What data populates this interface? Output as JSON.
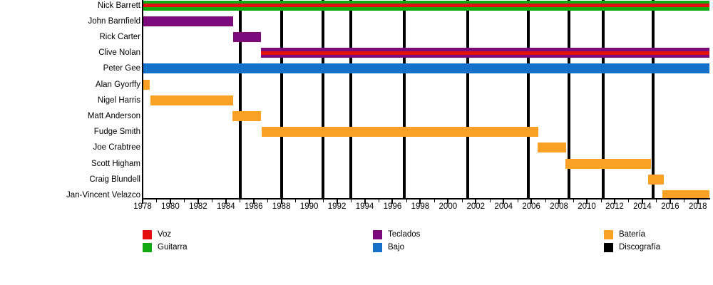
{
  "chart_data": {
    "type": "gantt",
    "description": "Band members timeline with instrument roles (colored bars) and discography release lines (vertical black lines)",
    "x_axis": {
      "min_year": 1978,
      "max_year": 2018.85,
      "tick_every_years": 1,
      "label_every_years": 2,
      "tick_labels": [
        "1978",
        "1980",
        "1982",
        "1984",
        "1986",
        "1988",
        "1990",
        "1992",
        "1994",
        "1996",
        "1998",
        "2000",
        "2002",
        "2004",
        "2006",
        "2008",
        "2010",
        "2012",
        "2014",
        "2016",
        "2018"
      ]
    },
    "colors": {
      "red": "#E40F0F",
      "green": "#13A913",
      "purple": "#7D0A7D",
      "blue": "#1470C8",
      "orange": "#FBA226",
      "black": "#000000"
    },
    "rows": [
      {
        "label": "Nick Barrett",
        "bars": [
          {
            "from": 1978,
            "to": 2018.85,
            "color": "green",
            "stripe": "red"
          }
        ]
      },
      {
        "label": "John Barnfield",
        "bars": [
          {
            "from": 1978,
            "to": 1984.5,
            "color": "purple"
          }
        ]
      },
      {
        "label": "Rick Carter",
        "bars": [
          {
            "from": 1984.5,
            "to": 1986.55,
            "color": "purple"
          }
        ]
      },
      {
        "label": "Clive Nolan",
        "bars": [
          {
            "from": 1986.55,
            "to": 2018.85,
            "color": "purple",
            "stripe": "red"
          }
        ]
      },
      {
        "label": "Peter Gee",
        "bars": [
          {
            "from": 1978,
            "to": 2018.85,
            "color": "blue"
          }
        ]
      },
      {
        "label": "Alan Gyorffy",
        "bars": [
          {
            "from": 1978,
            "to": 1978.5,
            "color": "orange"
          }
        ]
      },
      {
        "label": "Nigel Harris",
        "bars": [
          {
            "from": 1978.55,
            "to": 1984.5,
            "color": "orange"
          }
        ]
      },
      {
        "label": "Matt Anderson",
        "bars": [
          {
            "from": 1984.45,
            "to": 1986.55,
            "color": "orange"
          }
        ]
      },
      {
        "label": "Fudge Smith",
        "bars": [
          {
            "from": 1986.6,
            "to": 2006.5,
            "color": "orange"
          }
        ]
      },
      {
        "label": "Joe Crabtree",
        "bars": [
          {
            "from": 2006.45,
            "to": 2008.5,
            "color": "orange"
          }
        ]
      },
      {
        "label": "Scott Higham",
        "bars": [
          {
            "from": 2008.45,
            "to": 2014.6,
            "color": "orange"
          }
        ]
      },
      {
        "label": "Craig Blundell",
        "bars": [
          {
            "from": 2014.4,
            "to": 2015.55,
            "color": "orange"
          }
        ]
      },
      {
        "label": "Jan-Vincent Velazco",
        "bars": [
          {
            "from": 2015.45,
            "to": 2018.85,
            "color": "orange"
          }
        ]
      }
    ],
    "discography_lines_years": [
      1985.05,
      1988.0,
      1991.0,
      1993.0,
      1996.85,
      2001.4,
      2005.8,
      2008.7,
      2011.2,
      2014.75
    ],
    "legend": {
      "columns": [
        [
          {
            "label": "Voz",
            "color": "red"
          },
          {
            "label": "Guitarra",
            "color": "green"
          }
        ],
        [
          {
            "label": "Teclados",
            "color": "purple"
          },
          {
            "label": "Bajo",
            "color": "blue"
          }
        ],
        [
          {
            "label": "Batería",
            "color": "orange"
          },
          {
            "label": "Discografía",
            "color": "black"
          }
        ]
      ]
    }
  }
}
